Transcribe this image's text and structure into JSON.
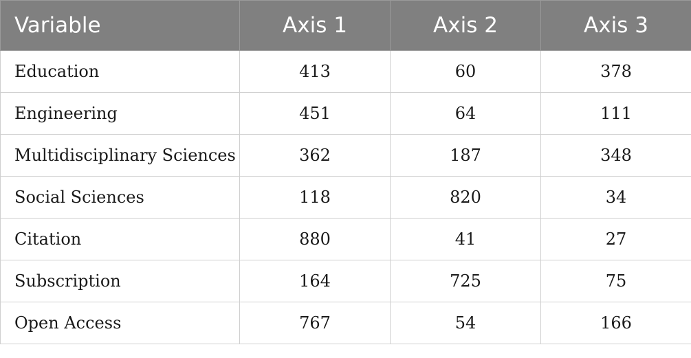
{
  "table": {
    "header": [
      "Variable",
      "Axis 1",
      "Axis 2",
      "Axis 3"
    ],
    "rows": [
      [
        "Education",
        413,
        60,
        378
      ],
      [
        "Engineering",
        451,
        64,
        111
      ],
      [
        "Multidisciplinary Sciences",
        362,
        187,
        348
      ],
      [
        "Social Sciences",
        118,
        820,
        34
      ],
      [
        "Citation",
        880,
        41,
        27
      ],
      [
        "Subscription",
        164,
        725,
        75
      ],
      [
        "Open Access",
        767,
        54,
        166
      ]
    ]
  }
}
